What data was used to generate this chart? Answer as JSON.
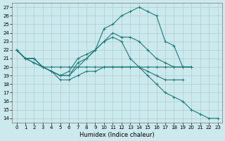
{
  "xlabel": "Humidex (Indice chaleur)",
  "xlim": [
    -0.5,
    23.5
  ],
  "ylim": [
    13.5,
    27.5
  ],
  "xticks": [
    0,
    1,
    2,
    3,
    4,
    5,
    6,
    7,
    8,
    9,
    10,
    11,
    12,
    13,
    14,
    15,
    16,
    17,
    18,
    19,
    20,
    21,
    22,
    23
  ],
  "yticks": [
    14,
    15,
    16,
    17,
    18,
    19,
    20,
    21,
    22,
    23,
    24,
    25,
    26,
    27
  ],
  "bg_color": "#cce9ed",
  "grid_color": "#aacfd4",
  "line_color": "#1e7a78",
  "lines": [
    {
      "x": [
        0,
        1,
        2,
        3,
        4,
        5,
        6,
        7,
        8,
        9,
        10,
        11,
        12,
        13,
        14,
        15,
        16,
        17,
        18,
        19,
        20
      ],
      "y": [
        22,
        21,
        20.5,
        20,
        20,
        20,
        20,
        20,
        20,
        20,
        20,
        20,
        20,
        20,
        20,
        20,
        20,
        20,
        20,
        20,
        20
      ]
    },
    {
      "x": [
        0,
        1,
        2,
        3,
        4,
        5,
        6,
        7,
        8,
        9,
        10,
        11,
        12,
        13,
        14,
        15,
        16,
        17,
        18,
        19,
        20
      ],
      "y": [
        22,
        21,
        20.5,
        20,
        19.5,
        18.5,
        18.5,
        19,
        19.5,
        19.5,
        20,
        20,
        20,
        20,
        20,
        19.5,
        19,
        18.5,
        18.5,
        18.5,
        null
      ]
    },
    {
      "x": [
        0,
        1,
        2,
        3,
        4,
        5,
        6,
        7,
        8,
        9,
        10,
        11,
        12,
        13,
        14,
        15,
        16,
        17,
        18,
        19,
        20
      ],
      "y": [
        22,
        21,
        21,
        20,
        19.5,
        19,
        19.5,
        21,
        21.5,
        22,
        23,
        24,
        23.5,
        23.5,
        23,
        22,
        21,
        20.5,
        20,
        20,
        20
      ]
    },
    {
      "x": [
        0,
        1,
        2,
        3,
        4,
        5,
        6,
        7,
        8,
        9,
        10,
        11,
        12,
        13,
        14,
        15,
        16,
        17,
        18,
        19,
        20
      ],
      "y": [
        22,
        21,
        21,
        20,
        19.5,
        19,
        19,
        20.5,
        21,
        22,
        24.5,
        25,
        26,
        26.5,
        27,
        26.5,
        26,
        23,
        22.5,
        20,
        20
      ]
    },
    {
      "x": [
        0,
        1,
        2,
        3,
        4,
        5,
        6,
        7,
        8,
        9,
        10,
        11,
        12,
        13,
        14,
        15,
        16,
        17,
        18,
        19,
        20,
        21,
        22,
        23
      ],
      "y": [
        22,
        21,
        21,
        20,
        19.5,
        19,
        19,
        20,
        21,
        22,
        23,
        23.5,
        23,
        21,
        20,
        19,
        18,
        17,
        16.5,
        16,
        15,
        14.5,
        14,
        14
      ]
    }
  ]
}
